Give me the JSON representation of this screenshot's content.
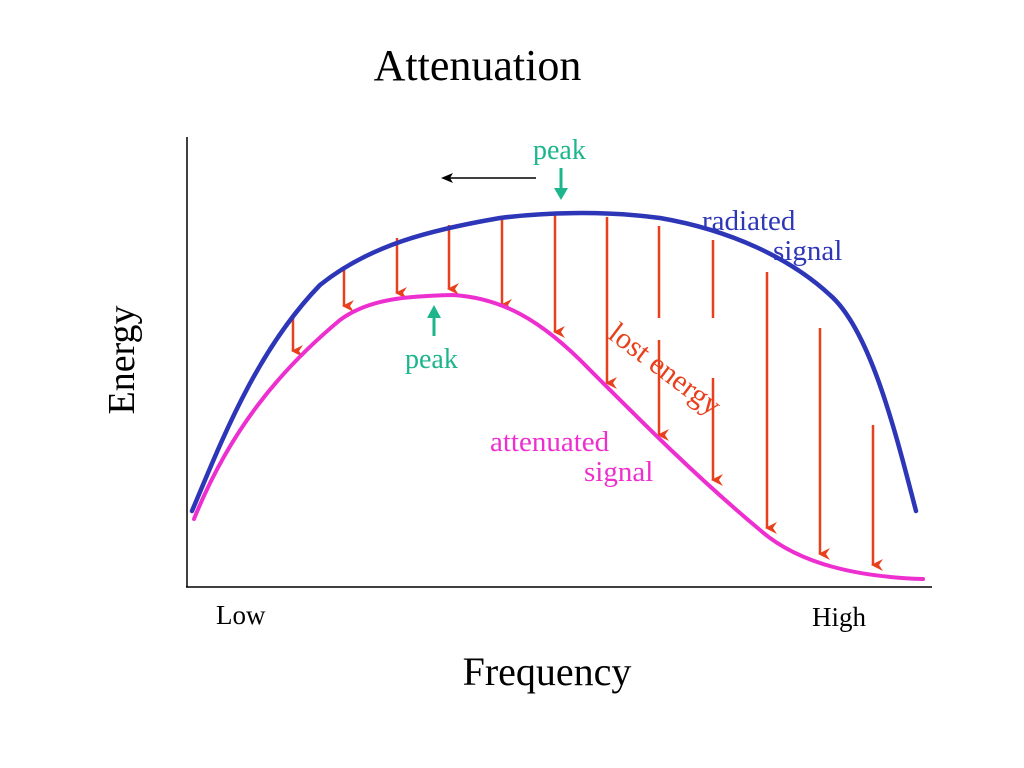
{
  "title": "Attenuation",
  "axes": {
    "ylabel": "Energy",
    "xlabel": "Frequency",
    "x_tick_low": "Low",
    "x_tick_high": "High"
  },
  "labels": {
    "peak_radiated": "peak",
    "peak_attenuated": "peak",
    "radiated_line1": "radiated",
    "radiated_line2": "signal",
    "attenuated_line1": "attenuated",
    "attenuated_line2": "signal",
    "lost_energy": "lost energy"
  },
  "colors": {
    "radiated": "#2e36b8",
    "attenuated": "#ee2fd0",
    "lost": "#e8401c",
    "peak": "#1db58c",
    "axis": "#000000"
  }
}
